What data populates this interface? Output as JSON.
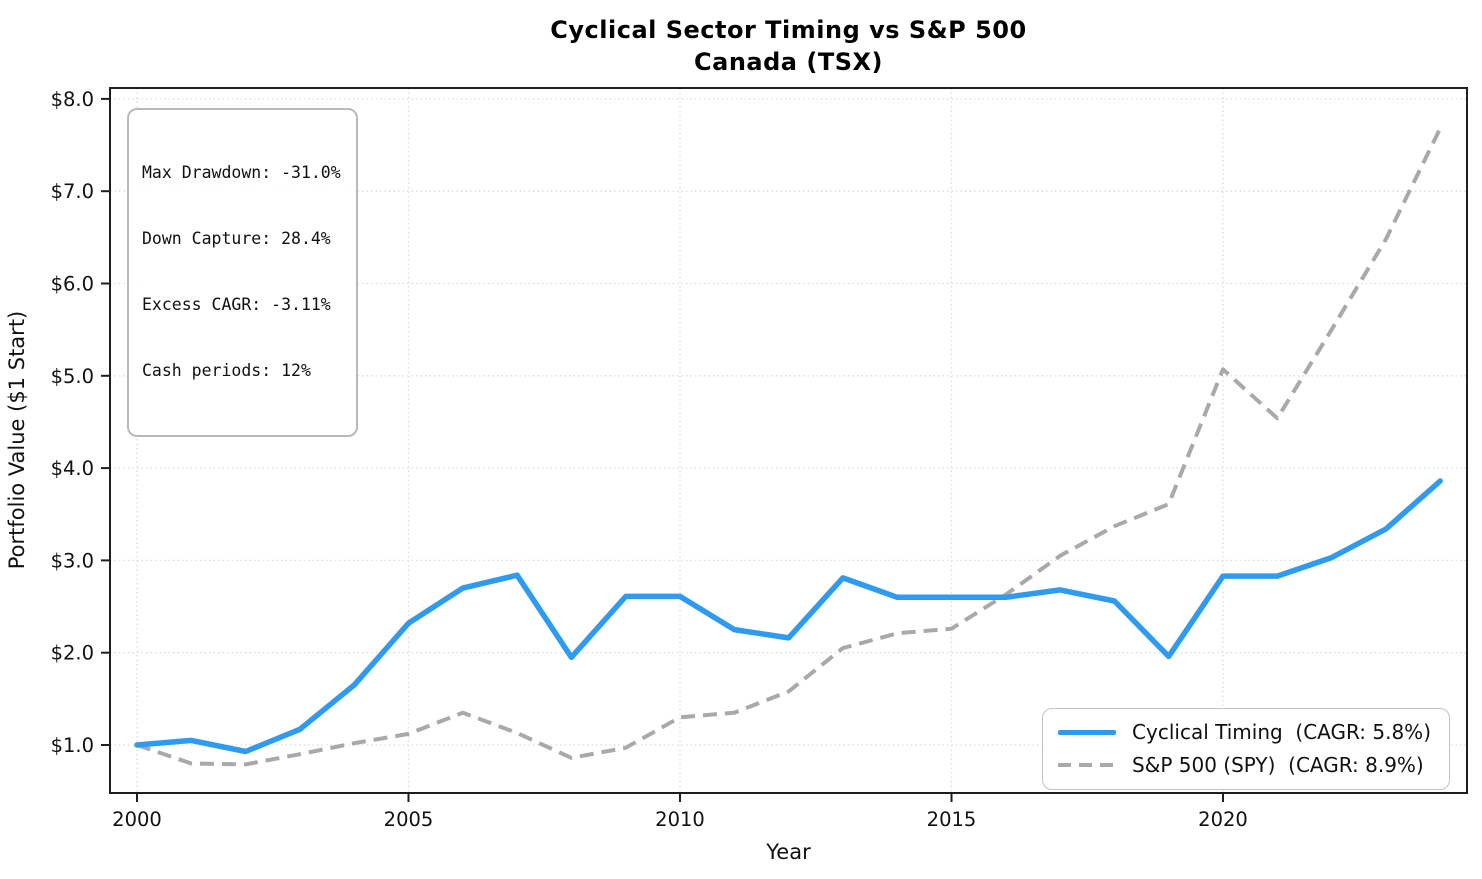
{
  "title": {
    "line1": "Cyclical Sector Timing vs S&P 500",
    "line2": "Canada (TSX)"
  },
  "stats_box": {
    "lines": [
      "Max Drawdown: -31.0%",
      "Down Capture: 28.4%",
      "Excess CAGR: -3.11%",
      "Cash periods: 12%"
    ]
  },
  "legend": {
    "position": "lower right",
    "items": [
      {
        "label": "Cyclical Timing  (CAGR: 5.8%)",
        "style": "solid",
        "color": "#2E9BF0"
      },
      {
        "label": "S&P 500 (SPY)  (CAGR: 8.9%)",
        "style": "dashed",
        "color": "#A9A9A9"
      }
    ]
  },
  "axes": {
    "xlabel": "Year",
    "ylabel": "Portfolio Value ($1 Start)",
    "x_ticks": [
      {
        "label": "2000",
        "value": 2000
      },
      {
        "label": "2005",
        "value": 2005
      },
      {
        "label": "2010",
        "value": 2010
      },
      {
        "label": "2015",
        "value": 2015
      },
      {
        "label": "2020",
        "value": 2020
      }
    ],
    "y_ticks": [
      {
        "label": "$1.0",
        "value": 1.0
      },
      {
        "label": "$2.0",
        "value": 2.0
      },
      {
        "label": "$3.0",
        "value": 3.0
      },
      {
        "label": "$4.0",
        "value": 4.0
      },
      {
        "label": "$5.0",
        "value": 5.0
      },
      {
        "label": "$6.0",
        "value": 6.0
      },
      {
        "label": "$7.0",
        "value": 7.0
      },
      {
        "label": "$8.0",
        "value": 8.0
      }
    ]
  },
  "colors": {
    "cyclical": "#2E9BF0",
    "sp500": "#A9A9A9",
    "gridline": "#DCDCDC",
    "spine": "#1F1F1F",
    "text": "#111111"
  },
  "chart_data": {
    "type": "line",
    "title": "Cyclical Sector Timing vs S&P 500 — Canada (TSX)",
    "xlabel": "Year",
    "ylabel": "Portfolio Value ($1 Start)",
    "xlim": [
      1999.5,
      2024.5
    ],
    "ylim": [
      0.48,
      8.12
    ],
    "grid": true,
    "legend_position": "lower right",
    "x": [
      2000,
      2001,
      2002,
      2003,
      2004,
      2005,
      2006,
      2007,
      2008,
      2009,
      2010,
      2011,
      2012,
      2013,
      2014,
      2015,
      2016,
      2017,
      2018,
      2019,
      2020,
      2021,
      2022,
      2023,
      2024
    ],
    "series": [
      {
        "name": "Cyclical Timing  (CAGR: 5.8%)",
        "style": "solid",
        "color": "#2E9BF0",
        "values": [
          1.0,
          1.05,
          0.93,
          1.17,
          1.65,
          2.32,
          2.7,
          2.84,
          1.95,
          2.61,
          2.61,
          2.25,
          2.16,
          2.81,
          2.6,
          2.6,
          2.6,
          2.68,
          2.56,
          1.96,
          2.83,
          2.83,
          3.03,
          3.34,
          3.86
        ]
      },
      {
        "name": "S&P 500 (SPY)  (CAGR: 8.9%)",
        "style": "dashed",
        "color": "#A9A9A9",
        "values": [
          1.0,
          0.8,
          0.79,
          0.9,
          1.02,
          1.12,
          1.35,
          1.13,
          0.86,
          0.97,
          1.3,
          1.35,
          1.58,
          2.05,
          2.21,
          2.26,
          2.63,
          3.05,
          3.37,
          3.61,
          5.07,
          4.54,
          5.5,
          6.48,
          7.68
        ]
      }
    ],
    "annotations": [
      "Max Drawdown: -31.0%",
      "Down Capture: 28.4%",
      "Excess CAGR: -3.11%",
      "Cash periods: 12%"
    ]
  }
}
